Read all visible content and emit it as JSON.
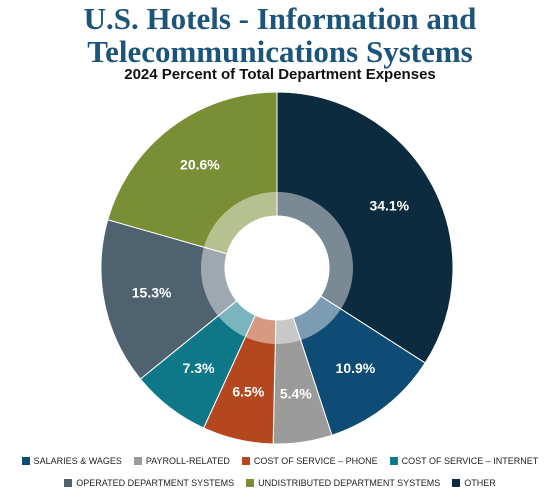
{
  "chart_data": {
    "type": "donut",
    "title": "U.S. Hotels - Information and Telecommunications Systems",
    "subtitle": "2024 Percent of Total Department Expenses",
    "categories": [
      "SALARIES & WAGES",
      "PAYROLL-RELATED",
      "COST OF SERVICE – PHONE",
      "COST OF SERVICE – INTERNET",
      "OPERATED DEPARTMENT SYSTEMS",
      "UNDISTRIBUTED DEPARTMENT SYSTEMS",
      "OTHER"
    ],
    "values": [
      10.9,
      5.4,
      6.5,
      7.3,
      15.3,
      20.6,
      34.1
    ],
    "value_labels": [
      "10.9%",
      "5.4%",
      "6.5%",
      "7.3%",
      "15.3%",
      "20.6%",
      "34.1%"
    ],
    "colors": [
      "#0f4c75",
      "#9b9b9b",
      "#b4471d",
      "#0e7888",
      "#4e6270",
      "#7a8e36",
      "#0c2b3e"
    ],
    "legend": "bottom"
  }
}
